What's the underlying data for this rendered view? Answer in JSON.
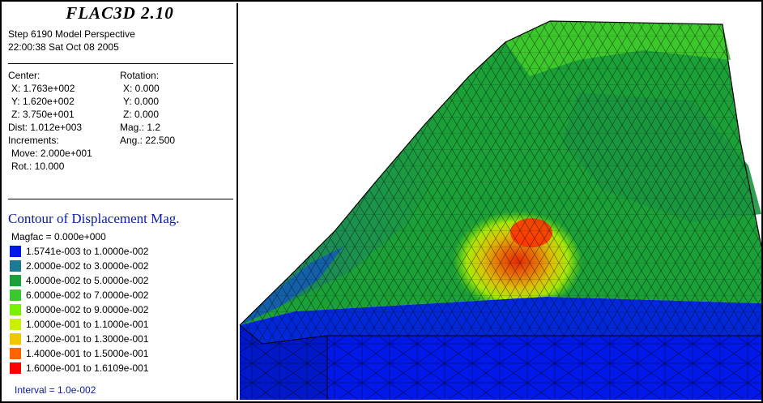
{
  "header": {
    "app_title": "FLAC3D 2.10",
    "step_line": "Step 6190  Model Perspective",
    "datetime": "22:00:38 Sat Oct 08 2005"
  },
  "view_info": {
    "center_label": "Center:",
    "center_x": "X: 1.763e+002",
    "center_y": "Y: 1.620e+002",
    "center_z": "Z: 3.750e+001",
    "rotation_label": "Rotation:",
    "rot_x": "X:  0.000",
    "rot_y": "Y:  0.000",
    "rot_z": "Z:  0.000",
    "dist": "Dist: 1.012e+003",
    "mag": "Mag.:    1.2",
    "increments_label": "Increments:",
    "ang": "Ang.:  22.500",
    "move": "Move: 2.000e+001",
    "rot": "Rot.:  10.000"
  },
  "contour": {
    "title": "Contour of Displacement Mag.",
    "magfac": "Magfac =  0.000e+000",
    "interval": "Interval =  1.0e-002",
    "legend": [
      {
        "label": "1.5741e-003 to  1.0000e-002",
        "color": "#0018e8"
      },
      {
        "label": "2.0000e-002 to  3.0000e-002",
        "color": "#1c7b92"
      },
      {
        "label": "4.0000e-002 to  5.0000e-002",
        "color": "#1ca038"
      },
      {
        "label": "6.0000e-002 to  7.0000e-002",
        "color": "#3cc82c"
      },
      {
        "label": "8.0000e-002 to  9.0000e-002",
        "color": "#78f000"
      },
      {
        "label": "1.0000e-001 to  1.1000e-001",
        "color": "#c8f000"
      },
      {
        "label": "1.2000e-001 to  1.3000e-001",
        "color": "#f0c800"
      },
      {
        "label": "1.4000e-001 to  1.5000e-001",
        "color": "#ff6400"
      },
      {
        "label": "1.6000e-001 to  1.6109e-001",
        "color": "#ff0000"
      }
    ]
  }
}
